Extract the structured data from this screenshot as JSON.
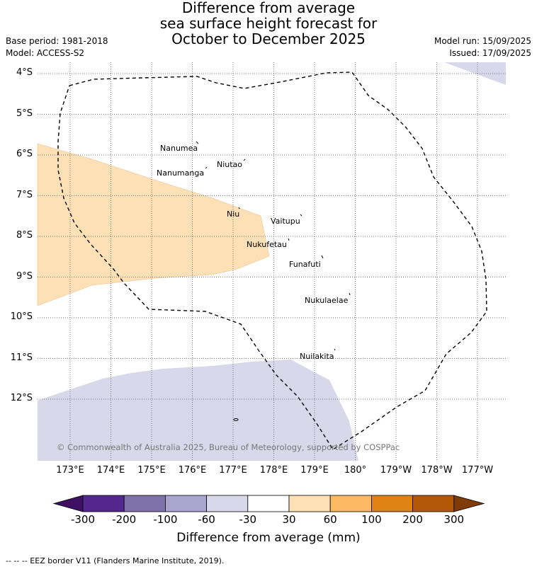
{
  "title": {
    "line1": "Difference from average",
    "line2": "sea surface height forecast for",
    "line3": "October to December 2025"
  },
  "meta_left": {
    "base_period": "Base period: 1981-2018",
    "model": "Model: ACCESS-S2"
  },
  "meta_right": {
    "model_run": "Model run: 15/09/2025",
    "issued": "Issued: 17/09/2025"
  },
  "map": {
    "lat_labels": [
      "4°S",
      "5°S",
      "6°S",
      "7°S",
      "8°S",
      "9°S",
      "10°S",
      "11°S",
      "12°S"
    ],
    "lon_labels": [
      "173°E",
      "174°E",
      "175°E",
      "176°E",
      "177°E",
      "178°E",
      "179°E",
      "180°",
      "179°W",
      "178°W",
      "177°W"
    ],
    "grid": true,
    "places": [
      {
        "name": "Nanumea"
      },
      {
        "name": "Niutao"
      },
      {
        "name": "Nanumanga"
      },
      {
        "name": "Niu"
      },
      {
        "name": "Vaitupu"
      },
      {
        "name": "Nukufetau"
      },
      {
        "name": "Funafuti"
      },
      {
        "name": "Nukulaelae"
      },
      {
        "name": "Nuilakita"
      }
    ],
    "copyright": "© Commonwealth of Australia 2025, Bureau of Meteorology, supported by COSPPac",
    "colors": {
      "positive_30_60": "#fde0b6",
      "negative_60_30": "#d8d8ea",
      "eez_line": "#000000"
    }
  },
  "colorbar": {
    "label": "Difference from average (mm)",
    "ticks": [
      "-300",
      "-200",
      "-100",
      "-60",
      "-30",
      "30",
      "60",
      "100",
      "200",
      "300"
    ],
    "colors": [
      "#3f0f63",
      "#54278f",
      "#7f72aa",
      "#aaa5cf",
      "#d8d8ea",
      "#ffffff",
      "#fde0b6",
      "#fdb863",
      "#e08214",
      "#b35806",
      "#7f3b08"
    ]
  },
  "footer": "-- -- -- EEZ border V11 (Flanders Marine Institute, 2019)."
}
